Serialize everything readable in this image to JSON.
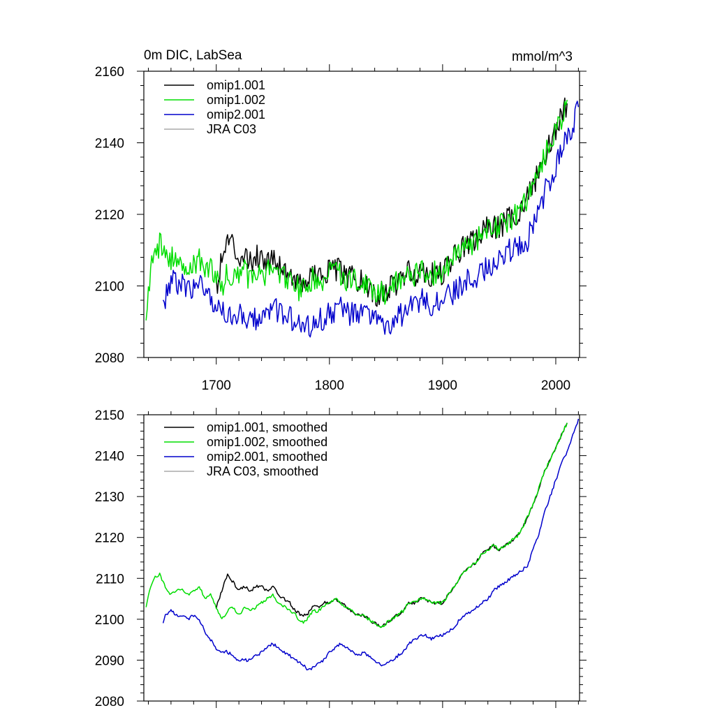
{
  "chart_data": [
    {
      "type": "line",
      "title": "0m DIC, LabSea",
      "units": "mmol/m^3",
      "xlim": [
        1636,
        2021
      ],
      "ylim": [
        2080,
        2160
      ],
      "xticks": [
        1700,
        1800,
        1900,
        2000
      ],
      "yticks": [
        2080,
        2100,
        2120,
        2140,
        2160
      ],
      "grid": false,
      "legend": "top-left",
      "series": [
        {
          "name": "omip1.001",
          "color": "#000000",
          "x": [
            1700,
            1705,
            1710,
            1715,
            1720,
            1725,
            1730,
            1735,
            1740,
            1745,
            1750,
            1755,
            1760,
            1765,
            1770,
            1775,
            1780,
            1785,
            1790,
            1795,
            1800,
            1805,
            1810,
            1815,
            1820,
            1825,
            1830,
            1835,
            1840,
            1845,
            1850,
            1855,
            1860,
            1865,
            1870,
            1875,
            1880,
            1885,
            1890,
            1895,
            1900,
            1905,
            1910,
            1915,
            1920,
            1925,
            1930,
            1935,
            1940,
            1945,
            1950,
            1955,
            1960,
            1965,
            1970,
            1975,
            1980,
            1985,
            1990,
            1995,
            2000,
            2005,
            2010
          ],
          "y": [
            2100,
            2107,
            2113,
            2111,
            2108,
            2110,
            2106,
            2109,
            2108,
            2107,
            2109,
            2106,
            2105,
            2103,
            2102,
            2100,
            2101,
            2104,
            2102,
            2103,
            2104,
            2105,
            2104,
            2102,
            2103,
            2101,
            2101,
            2099,
            2097,
            2098,
            2098,
            2100,
            2101,
            2102,
            2104,
            2103,
            2105,
            2104,
            2103,
            2104,
            2103,
            2106,
            2108,
            2110,
            2111,
            2112,
            2113,
            2115,
            2116,
            2117,
            2116,
            2118,
            2119,
            2120,
            2122,
            2125,
            2128,
            2132,
            2136,
            2140,
            2144,
            2147,
            2151
          ]
        },
        {
          "name": "omip1.002",
          "color": "#00dd00",
          "x": [
            1638,
            1640,
            1642,
            1645,
            1650,
            1655,
            1660,
            1665,
            1670,
            1675,
            1680,
            1685,
            1690,
            1695,
            1700,
            1705,
            1710,
            1715,
            1720,
            1725,
            1730,
            1735,
            1740,
            1745,
            1750,
            1755,
            1760,
            1765,
            1770,
            1775,
            1780,
            1785,
            1790,
            1795,
            1800,
            1805,
            1810,
            1815,
            1820,
            1825,
            1830,
            1835,
            1840,
            1845,
            1850,
            1855,
            1860,
            1865,
            1870,
            1875,
            1880,
            1885,
            1890,
            1895,
            1900,
            1905,
            1910,
            1915,
            1920,
            1925,
            1930,
            1935,
            1940,
            1945,
            1950,
            1955,
            1960,
            1965,
            1970,
            1975,
            1980,
            1985,
            1990,
            1995,
            2000,
            2005,
            2010
          ],
          "y": [
            2087,
            2098,
            2106,
            2108,
            2112,
            2109,
            2108,
            2106,
            2107,
            2105,
            2106,
            2107,
            2104,
            2106,
            2103,
            2100,
            2104,
            2103,
            2102,
            2104,
            2102,
            2104,
            2103,
            2104,
            2105,
            2103,
            2102,
            2101,
            2101,
            2098,
            2100,
            2102,
            2101,
            2102,
            2103,
            2104,
            2103,
            2102,
            2103,
            2101,
            2101,
            2099,
            2097,
            2098,
            2098,
            2100,
            2101,
            2102,
            2104,
            2103,
            2105,
            2104,
            2103,
            2104,
            2103,
            2106,
            2108,
            2110,
            2111,
            2112,
            2113,
            2115,
            2116,
            2117,
            2116,
            2118,
            2119,
            2120,
            2122,
            2125,
            2128,
            2132,
            2136,
            2140,
            2144,
            2147,
            2152
          ]
        },
        {
          "name": "omip2.001",
          "color": "#0000cc",
          "x": [
            1653,
            1655,
            1660,
            1665,
            1670,
            1675,
            1680,
            1685,
            1690,
            1695,
            1700,
            1705,
            1710,
            1715,
            1720,
            1725,
            1730,
            1735,
            1740,
            1745,
            1750,
            1755,
            1760,
            1765,
            1770,
            1775,
            1780,
            1785,
            1790,
            1795,
            1800,
            1805,
            1810,
            1815,
            1820,
            1825,
            1830,
            1835,
            1840,
            1845,
            1850,
            1855,
            1860,
            1865,
            1870,
            1875,
            1880,
            1885,
            1890,
            1895,
            1900,
            1905,
            1910,
            1915,
            1920,
            1925,
            1930,
            1935,
            1940,
            1945,
            1950,
            1955,
            1960,
            1965,
            1970,
            1975,
            1980,
            1985,
            1990,
            1995,
            2000,
            2005,
            2010,
            2015,
            2020
          ],
          "y": [
            2094,
            2097,
            2102,
            2101,
            2100,
            2099,
            2100,
            2101,
            2098,
            2096,
            2094,
            2093,
            2092,
            2091,
            2092,
            2091,
            2090,
            2091,
            2092,
            2093,
            2094,
            2093,
            2092,
            2091,
            2090,
            2089,
            2088,
            2089,
            2090,
            2091,
            2092,
            2093,
            2094,
            2093,
            2092,
            2091,
            2092,
            2091,
            2090,
            2089,
            2089,
            2090,
            2091,
            2092,
            2094,
            2095,
            2096,
            2096,
            2095,
            2096,
            2096,
            2097,
            2098,
            2100,
            2101,
            2102,
            2103,
            2104,
            2105,
            2107,
            2108,
            2109,
            2110,
            2111,
            2112,
            2113,
            2117,
            2121,
            2126,
            2130,
            2134,
            2138,
            2141,
            2145,
            2150
          ]
        },
        {
          "name": "JRA C03",
          "color": "#aaaaaa",
          "x": [],
          "y": []
        }
      ]
    },
    {
      "type": "line",
      "title": "",
      "xlim": [
        1636,
        2021
      ],
      "ylim": [
        2080,
        2150
      ],
      "yticks": [
        2080,
        2090,
        2100,
        2110,
        2120,
        2130,
        2140,
        2150
      ],
      "grid": false,
      "legend": "top-left",
      "series": [
        {
          "name": "omip1.001, smoothed",
          "color": "#000000",
          "x": [
            1700,
            1705,
            1710,
            1715,
            1720,
            1725,
            1730,
            1735,
            1740,
            1745,
            1750,
            1755,
            1760,
            1765,
            1770,
            1775,
            1780,
            1785,
            1790,
            1795,
            1800,
            1805,
            1810,
            1815,
            1820,
            1825,
            1830,
            1835,
            1840,
            1845,
            1850,
            1855,
            1860,
            1865,
            1870,
            1875,
            1880,
            1885,
            1890,
            1895,
            1900,
            1905,
            1910,
            1915,
            1920,
            1925,
            1930,
            1935,
            1940,
            1945,
            1950,
            1955,
            1960,
            1965,
            1970,
            1975,
            1980,
            1985,
            1990,
            1995,
            2000,
            2005,
            2010
          ],
          "y": [
            2103,
            2107,
            2111,
            2109,
            2107,
            2108,
            2107,
            2108,
            2108,
            2107,
            2108,
            2106,
            2105,
            2104,
            2102,
            2101,
            2101,
            2103,
            2103,
            2104,
            2104,
            2105,
            2104,
            2103,
            2102,
            2101,
            2101,
            2100,
            2099,
            2098,
            2099,
            2100,
            2101,
            2102,
            2104,
            2104,
            2105,
            2105,
            2104,
            2104,
            2104,
            2106,
            2108,
            2110,
            2112,
            2113,
            2114,
            2116,
            2117,
            2118,
            2117,
            2118,
            2119,
            2120,
            2122,
            2125,
            2128,
            2132,
            2136,
            2139,
            2142,
            2145,
            2148
          ]
        },
        {
          "name": "omip1.002, smoothed",
          "color": "#00dd00",
          "x": [
            1638,
            1640,
            1645,
            1650,
            1655,
            1660,
            1665,
            1670,
            1675,
            1680,
            1685,
            1690,
            1695,
            1700,
            1705,
            1710,
            1715,
            1720,
            1725,
            1730,
            1735,
            1740,
            1745,
            1750,
            1755,
            1760,
            1765,
            1770,
            1775,
            1780,
            1785,
            1790,
            1795,
            1800,
            1805,
            1810,
            1815,
            1820,
            1825,
            1830,
            1835,
            1840,
            1845,
            1850,
            1855,
            1860,
            1865,
            1870,
            1875,
            1880,
            1885,
            1890,
            1895,
            1900,
            1905,
            1910,
            1915,
            1920,
            1925,
            1930,
            1935,
            1940,
            1945,
            1950,
            1955,
            1960,
            1965,
            1970,
            1975,
            1980,
            1985,
            1990,
            1995,
            2000,
            2005,
            2010
          ],
          "y": [
            2103,
            2106,
            2110,
            2111,
            2108,
            2106,
            2107,
            2107,
            2106,
            2107,
            2108,
            2105,
            2106,
            2103,
            2100,
            2102,
            2103,
            2101,
            2103,
            2102,
            2103,
            2104,
            2105,
            2106,
            2104,
            2103,
            2102,
            2101,
            2099,
            2100,
            2102,
            2102,
            2103,
            2104,
            2105,
            2104,
            2103,
            2102,
            2101,
            2101,
            2100,
            2099,
            2098,
            2099,
            2100,
            2101,
            2102,
            2104,
            2104,
            2105,
            2105,
            2104,
            2104,
            2104,
            2106,
            2108,
            2110,
            2112,
            2113,
            2114,
            2116,
            2117,
            2118,
            2117,
            2118,
            2119,
            2120,
            2122,
            2125,
            2128,
            2132,
            2136,
            2139,
            2142,
            2145,
            2148
          ]
        },
        {
          "name": "omip2.001, smoothed",
          "color": "#0000cc",
          "x": [
            1653,
            1655,
            1660,
            1665,
            1670,
            1675,
            1680,
            1685,
            1690,
            1695,
            1700,
            1705,
            1710,
            1715,
            1720,
            1725,
            1730,
            1735,
            1740,
            1745,
            1750,
            1755,
            1760,
            1765,
            1770,
            1775,
            1780,
            1785,
            1790,
            1795,
            1800,
            1805,
            1810,
            1815,
            1820,
            1825,
            1830,
            1835,
            1840,
            1845,
            1850,
            1855,
            1860,
            1865,
            1870,
            1875,
            1880,
            1885,
            1890,
            1895,
            1900,
            1905,
            1910,
            1915,
            1920,
            1925,
            1930,
            1935,
            1940,
            1945,
            1950,
            1955,
            1960,
            1965,
            1970,
            1975,
            1980,
            1985,
            1990,
            1995,
            2000,
            2005,
            2010,
            2015,
            2020
          ],
          "y": [
            2099,
            2101,
            2102,
            2101,
            2101,
            2100,
            2101,
            2100,
            2097,
            2095,
            2093,
            2092,
            2092,
            2091,
            2090,
            2090,
            2090,
            2091,
            2092,
            2093,
            2094,
            2093,
            2092,
            2091,
            2090,
            2089,
            2088,
            2088,
            2089,
            2090,
            2092,
            2093,
            2094,
            2093,
            2092,
            2091,
            2092,
            2091,
            2090,
            2089,
            2089,
            2090,
            2091,
            2092,
            2094,
            2095,
            2096,
            2096,
            2095,
            2096,
            2096,
            2097,
            2098,
            2100,
            2101,
            2102,
            2103,
            2104,
            2105,
            2107,
            2108,
            2109,
            2110,
            2111,
            2112,
            2113,
            2117,
            2121,
            2126,
            2130,
            2134,
            2138,
            2141,
            2145,
            2149
          ]
        },
        {
          "name": "JRA C03, smoothed",
          "color": "#aaaaaa",
          "x": [],
          "y": []
        }
      ]
    }
  ]
}
